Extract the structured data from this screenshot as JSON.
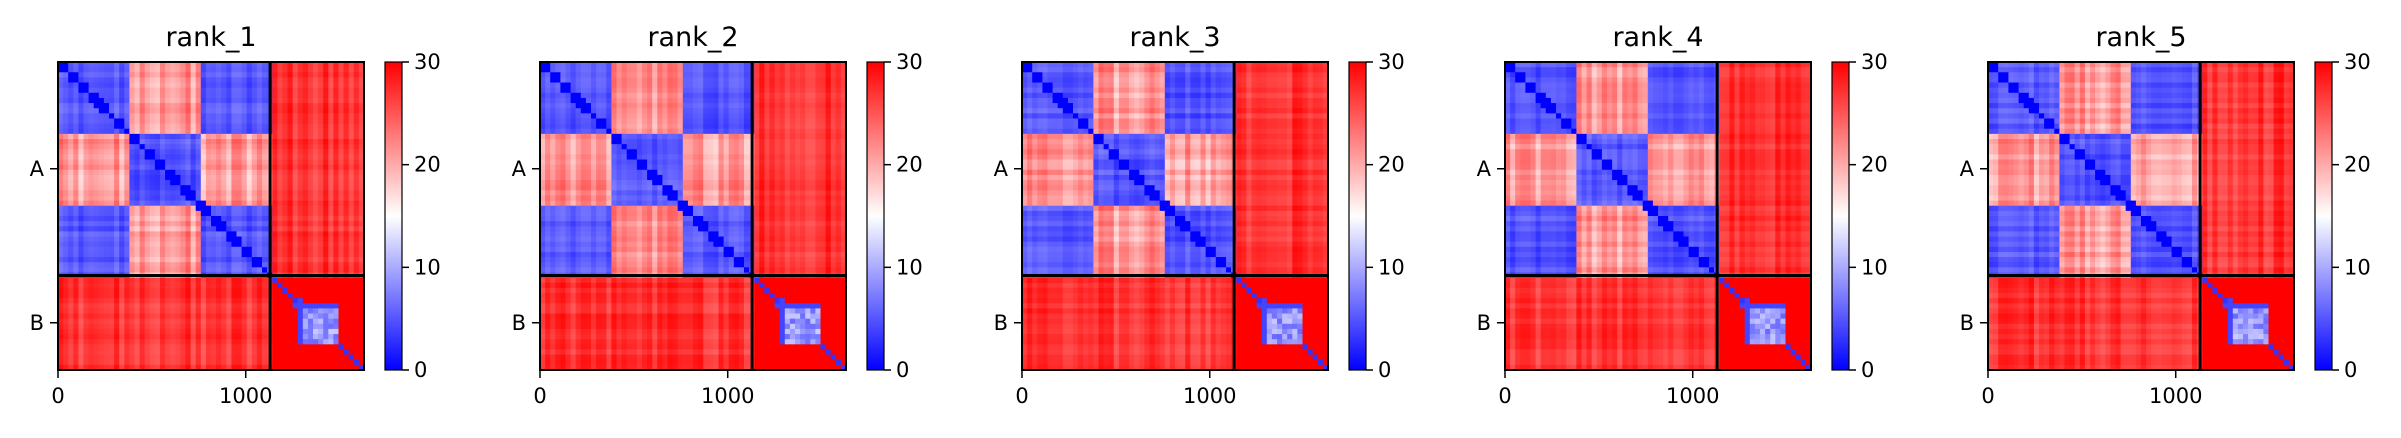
{
  "chart_data": {
    "type": "heatmap",
    "colormap": {
      "name": "bwr",
      "colors": [
        "#0000ff",
        "#ffffff",
        "#ff0000"
      ]
    },
    "grid": false,
    "block_labels": [
      "A",
      "B"
    ],
    "block_boundary": 1130,
    "matrix_extent": [
      0,
      1630
    ],
    "x_ticks": [
      0,
      1000
    ],
    "x_tick_labels": [
      "0",
      "1000"
    ],
    "colorbar": {
      "ticks": [
        0,
        10,
        20,
        30
      ],
      "tick_labels": [
        "0",
        "10",
        "20",
        "30"
      ],
      "range": [
        0,
        30
      ]
    },
    "panels": [
      {
        "title": "rank_1"
      },
      {
        "title": "rank_2"
      },
      {
        "title": "rank_3"
      },
      {
        "title": "rank_4"
      },
      {
        "title": "rank_5"
      }
    ]
  }
}
